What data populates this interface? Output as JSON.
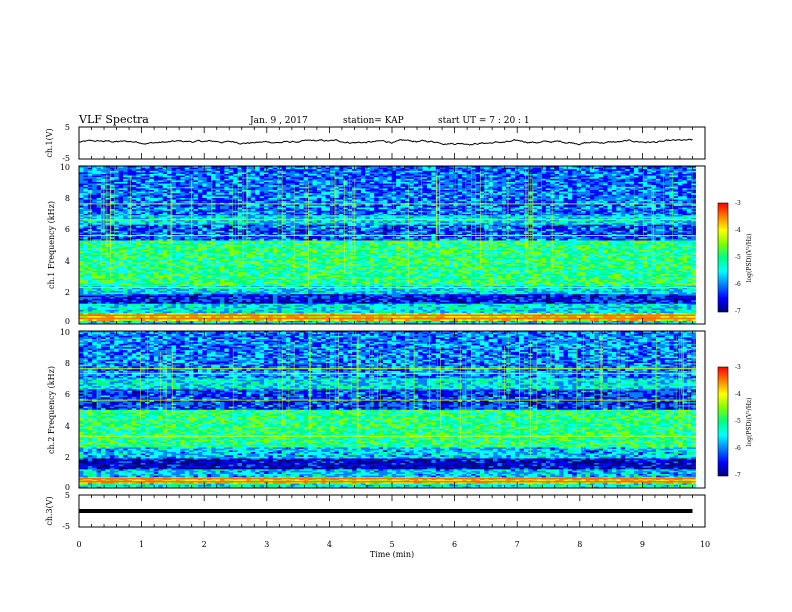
{
  "header": {
    "title": "VLF Spectra",
    "date": "Jan. 9 , 2017",
    "station": "station= KAP",
    "start_ut": "start UT = 7 : 20 : 1"
  },
  "colors": {
    "waveform": "#000000",
    "colormap": [
      "#000080",
      "#0000ff",
      "#0080ff",
      "#00ffff",
      "#00ff80",
      "#80ff00",
      "#ffff00",
      "#ff8000",
      "#ff0000",
      "#ffffff"
    ],
    "background": "#ffffff"
  },
  "chart_data": [
    {
      "type": "line",
      "ylabel": "ch.1(V)",
      "xlim": [
        0,
        10
      ],
      "ylim": [
        -5,
        5
      ],
      "yticks": [
        "5",
        "-5"
      ],
      "x_extent": [
        0,
        9.8
      ],
      "mean": 0.3,
      "amplitude": 0.6,
      "note_values": "noisy waveform fluctuating between about -1 and 1 V"
    },
    {
      "type": "heatmap",
      "ylabel": "ch.1 Frequency (kHz)",
      "xlim": [
        0,
        10
      ],
      "ylim": [
        0,
        10
      ],
      "yticks": [
        "0",
        "2",
        "4",
        "6",
        "8",
        "10"
      ],
      "colorbar": {
        "label": "log(PSD)(V²/Hz)",
        "range": [
          -7,
          -3
        ],
        "ticks": [
          "-3",
          "-4",
          "-5",
          "-6",
          "-7"
        ]
      },
      "frequency_bands_khz": [
        {
          "from": 0.0,
          "to": 0.2,
          "level": -5.5
        },
        {
          "from": 0.2,
          "to": 0.7,
          "level": -4.0
        },
        {
          "from": 0.7,
          "to": 1.3,
          "level": -5.5
        },
        {
          "from": 1.3,
          "to": 1.9,
          "level": -6.5
        },
        {
          "from": 1.9,
          "to": 2.4,
          "level": -5.6
        },
        {
          "from": 2.4,
          "to": 5.3,
          "level": -5.0
        },
        {
          "from": 5.3,
          "to": 6.3,
          "level": -6.2
        },
        {
          "from": 6.3,
          "to": 6.9,
          "level": -5.6
        },
        {
          "from": 6.9,
          "to": 10.0,
          "level": -6.1
        }
      ],
      "lines_khz": [
        0.35,
        0.55,
        2.3,
        5.6,
        6.6,
        7.6
      ]
    },
    {
      "type": "heatmap",
      "ylabel": "ch.2 Frequency (kHz)",
      "xlim": [
        0,
        10
      ],
      "ylim": [
        0,
        10
      ],
      "yticks": [
        "0",
        "2",
        "4",
        "6",
        "8",
        "10"
      ],
      "colorbar": {
        "label": "log(PSD)(V²/Hz)",
        "range": [
          -7,
          -3
        ],
        "ticks": [
          "-3",
          "-4",
          "-5",
          "-6",
          "-7"
        ]
      },
      "frequency_bands_khz": [
        {
          "from": 0.0,
          "to": 0.3,
          "level": -5.3
        },
        {
          "from": 0.3,
          "to": 0.7,
          "level": -4.0
        },
        {
          "from": 0.7,
          "to": 1.2,
          "level": -5.7
        },
        {
          "from": 1.2,
          "to": 1.9,
          "level": -6.7
        },
        {
          "from": 1.9,
          "to": 2.6,
          "level": -5.7
        },
        {
          "from": 2.6,
          "to": 5.0,
          "level": -5.0
        },
        {
          "from": 5.0,
          "to": 6.3,
          "level": -6.3
        },
        {
          "from": 6.3,
          "to": 7.0,
          "level": -5.5
        },
        {
          "from": 7.0,
          "to": 10.0,
          "level": -6.0
        }
      ],
      "lines_khz": [
        0.4,
        0.6,
        3.3,
        5.6,
        7.3,
        7.6
      ]
    },
    {
      "type": "line",
      "ylabel": "ch.3(V)",
      "xlim": [
        0,
        10
      ],
      "ylim": [
        -5,
        5
      ],
      "yticks": [
        "5",
        "-5"
      ],
      "x_extent": [
        0,
        9.8
      ],
      "value": 0
    }
  ],
  "xaxis": {
    "label": "Time (min)",
    "ticks": [
      "0",
      "1",
      "2",
      "3",
      "4",
      "5",
      "6",
      "7",
      "8",
      "9",
      "10"
    ]
  }
}
